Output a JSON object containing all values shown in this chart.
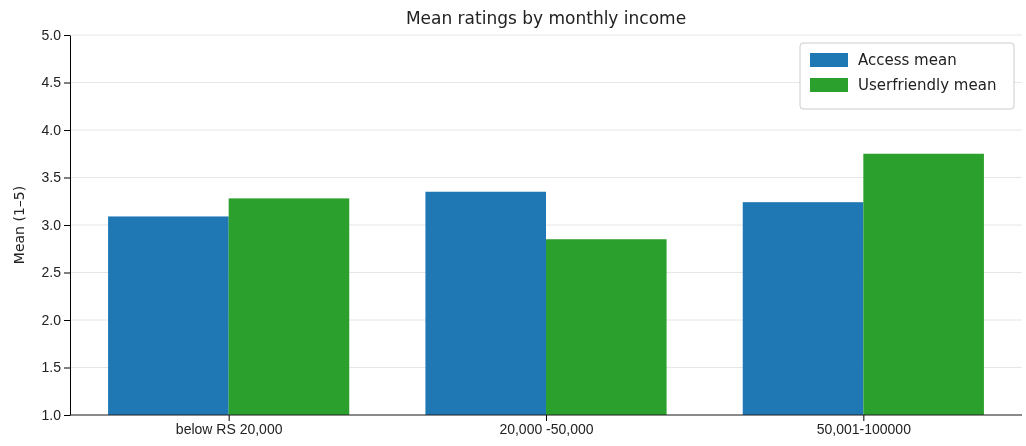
{
  "chart_data": {
    "type": "bar",
    "title": "Mean ratings by monthly income",
    "ylabel": "Mean (1–5)",
    "categories": [
      "below RS 20,000",
      "20,000 -50,000",
      "50,001-100000"
    ],
    "series": [
      {
        "name": "Access mean",
        "color": "#1f77b4",
        "values": [
          3.09,
          3.35,
          3.24
        ]
      },
      {
        "name": "Userfriendly mean",
        "color": "#2ca02c",
        "values": [
          3.28,
          2.85,
          3.75
        ]
      }
    ],
    "ylim": [
      1.0,
      5.0
    ],
    "yticks": [
      {
        "value": 1,
        "label": "1.0"
      },
      {
        "value": 1.5,
        "label": "1.5"
      },
      {
        "value": 2,
        "label": "2.0"
      },
      {
        "value": 2.5,
        "label": "2.5"
      },
      {
        "value": 3,
        "label": "3.0"
      },
      {
        "value": 3.5,
        "label": "3.5"
      },
      {
        "value": 4,
        "label": "4.0"
      },
      {
        "value": 4.5,
        "label": "4.5"
      },
      {
        "value": 5,
        "label": "5.0"
      }
    ],
    "grid": "y",
    "legend": "top right"
  }
}
